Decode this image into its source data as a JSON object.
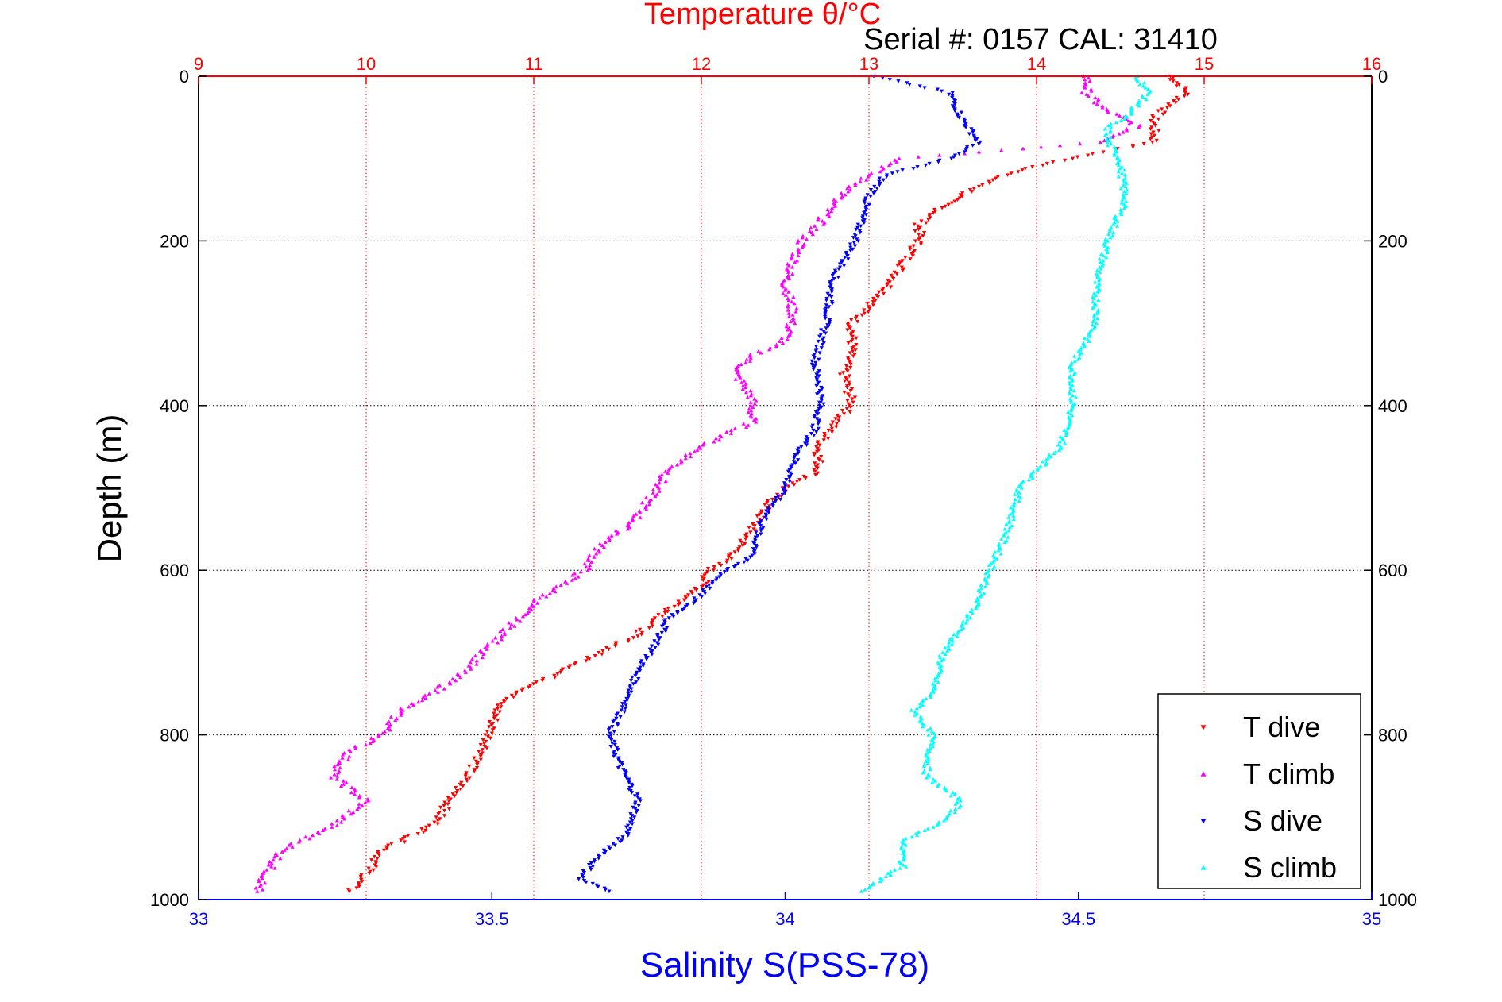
{
  "chart_data": {
    "type": "scatter",
    "title": "Temperature θ/°C",
    "subtitle": "Serial #: 0157  CAL: 31410",
    "ylabel": "Depth (m)",
    "x2label": "Salinity S(PSS-78)",
    "ylim": [
      1000,
      0
    ],
    "xlim_temperature": [
      9,
      16
    ],
    "xlim_salinity": [
      33,
      35
    ],
    "grid": true,
    "legend_position": "bottom-right",
    "y_ticks": [
      "0",
      "200",
      "400",
      "600",
      "800",
      "1000"
    ],
    "temperature_ticks": [
      "9",
      "10",
      "11",
      "12",
      "13",
      "14",
      "15",
      "16"
    ],
    "salinity_ticks": [
      "33",
      "33.5",
      "34",
      "34.5",
      "35"
    ],
    "colors": {
      "temperature_axis": "#ff0000",
      "salinity_axis": "#0000ff",
      "t_dive": "#ff0000",
      "t_climb": "#ff00ff",
      "s_dive": "#0000ff",
      "s_climb": "#00ffff"
    },
    "series": [
      {
        "name": "T dive",
        "axis": "temperature",
        "marker": "triangle-down",
        "color": "#ff0000",
        "depth": [
          0,
          20,
          50,
          80,
          100,
          120,
          150,
          180,
          200,
          230,
          260,
          300,
          330,
          360,
          400,
          420,
          450,
          480,
          500,
          520,
          550,
          580,
          600,
          620,
          650,
          680,
          700,
          730,
          760,
          790,
          820,
          850,
          880,
          910,
          940,
          970,
          990
        ],
        "values": [
          14.8,
          14.9,
          14.7,
          14.7,
          14.2,
          13.8,
          13.5,
          13.3,
          13.3,
          13.2,
          13.1,
          12.9,
          12.9,
          12.85,
          12.9,
          12.8,
          12.7,
          12.7,
          12.5,
          12.4,
          12.3,
          12.2,
          12.05,
          12.0,
          11.8,
          11.6,
          11.4,
          11.1,
          10.8,
          10.75,
          10.7,
          10.6,
          10.5,
          10.4,
          10.1,
          10.0,
          9.9
        ]
      },
      {
        "name": "T climb",
        "axis": "temperature",
        "marker": "triangle-up",
        "color": "#ff00ff",
        "depth": [
          0,
          20,
          40,
          60,
          80,
          90,
          100,
          120,
          150,
          180,
          200,
          250,
          290,
          320,
          340,
          360,
          390,
          420,
          450,
          480,
          510,
          540,
          570,
          600,
          640,
          680,
          720,
          750,
          770,
          800,
          820,
          850,
          880,
          910,
          940,
          970,
          990
        ],
        "values": [
          14.3,
          14.3,
          14.4,
          14.6,
          14.4,
          13.8,
          13.2,
          13.0,
          12.8,
          12.7,
          12.6,
          12.5,
          12.55,
          12.5,
          12.3,
          12.2,
          12.3,
          12.3,
          12.0,
          11.8,
          11.7,
          11.6,
          11.4,
          11.3,
          11.0,
          10.8,
          10.6,
          10.4,
          10.2,
          10.1,
          9.9,
          9.8,
          10.0,
          9.8,
          9.5,
          9.4,
          9.35
        ]
      },
      {
        "name": "S dive",
        "axis": "salinity",
        "marker": "triangle-down",
        "color": "#0000ff",
        "depth": [
          0,
          20,
          50,
          80,
          100,
          120,
          150,
          200,
          250,
          300,
          350,
          380,
          400,
          430,
          460,
          500,
          530,
          560,
          580,
          600,
          620,
          640,
          660,
          690,
          720,
          760,
          800,
          840,
          880,
          920,
          950,
          975,
          990
        ],
        "values": [
          34.15,
          34.28,
          34.3,
          34.33,
          34.28,
          34.17,
          34.14,
          34.12,
          34.08,
          34.07,
          34.05,
          34.06,
          34.06,
          34.05,
          34.02,
          34.0,
          33.97,
          33.95,
          33.95,
          33.9,
          33.87,
          33.84,
          33.8,
          33.78,
          33.75,
          33.73,
          33.7,
          33.72,
          33.75,
          33.73,
          33.68,
          33.65,
          33.7
        ]
      },
      {
        "name": "S climb",
        "axis": "salinity",
        "marker": "triangle-up",
        "color": "#00ffff",
        "depth": [
          0,
          20,
          50,
          60,
          80,
          100,
          150,
          200,
          250,
          300,
          350,
          400,
          450,
          500,
          550,
          600,
          650,
          700,
          750,
          770,
          800,
          850,
          880,
          900,
          930,
          960,
          990
        ],
        "values": [
          34.6,
          34.62,
          34.58,
          34.55,
          34.55,
          34.57,
          34.58,
          34.55,
          34.53,
          34.53,
          34.49,
          34.49,
          34.47,
          34.4,
          34.38,
          34.35,
          34.32,
          34.27,
          34.25,
          34.22,
          34.25,
          34.24,
          34.3,
          34.28,
          34.2,
          34.2,
          34.13
        ]
      }
    ]
  }
}
